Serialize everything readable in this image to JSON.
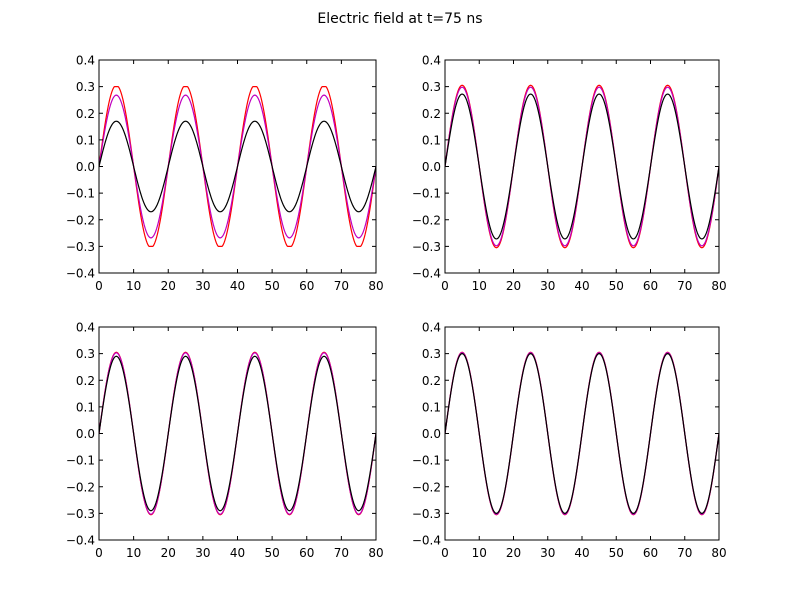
{
  "figure": {
    "title": "Electric field at t=75 ns"
  },
  "chart_data": [
    {
      "type": "line",
      "xlim": [
        0,
        80
      ],
      "ylim": [
        -0.4,
        0.4
      ],
      "xticks": [
        0,
        10,
        20,
        30,
        40,
        50,
        60,
        70,
        80
      ],
      "xtick_labels": [
        "0",
        "10",
        "20",
        "30",
        "40",
        "50",
        "60",
        "70",
        "80"
      ],
      "yticks": [
        -0.4,
        -0.3,
        -0.2,
        -0.1,
        0.0,
        0.1,
        0.2,
        0.3,
        0.4
      ],
      "ytick_labels": [
        "−0.4",
        "−0.3",
        "−0.2",
        "−0.1",
        "0.0",
        "0.1",
        "0.2",
        "0.3",
        "0.4"
      ],
      "grid": false,
      "series": [
        {
          "color": "#ff0000",
          "amplitude": 0.305,
          "period": 20,
          "x_start": 0,
          "x_end": 80,
          "shape": "clipped-sine",
          "flat_top": 0.3
        },
        {
          "color": "#bf00bf",
          "amplitude": 0.268,
          "period": 20,
          "x_start": 0,
          "x_end": 80,
          "shape": "sine"
        },
        {
          "color": "#000000",
          "amplitude": 0.17,
          "period": 20,
          "x_start": 0,
          "x_end": 80,
          "shape": "sine"
        }
      ]
    },
    {
      "type": "line",
      "xlim": [
        0,
        80
      ],
      "ylim": [
        -0.4,
        0.4
      ],
      "xticks": [
        0,
        10,
        20,
        30,
        40,
        50,
        60,
        70,
        80
      ],
      "xtick_labels": [
        "0",
        "10",
        "20",
        "30",
        "40",
        "50",
        "60",
        "70",
        "80"
      ],
      "yticks": [
        -0.4,
        -0.3,
        -0.2,
        -0.1,
        0.0,
        0.1,
        0.2,
        0.3,
        0.4
      ],
      "ytick_labels": [
        "−0.4",
        "−0.3",
        "−0.2",
        "−0.1",
        "0.0",
        "0.1",
        "0.2",
        "0.3",
        "0.4"
      ],
      "grid": false,
      "series": [
        {
          "color": "#ff0000",
          "amplitude": 0.305,
          "period": 20,
          "x_start": 0,
          "x_end": 80,
          "shape": "sine"
        },
        {
          "color": "#bf00bf",
          "amplitude": 0.298,
          "period": 20,
          "x_start": 0,
          "x_end": 80,
          "shape": "sine"
        },
        {
          "color": "#000000",
          "amplitude": 0.272,
          "period": 20,
          "x_start": 0,
          "x_end": 80,
          "shape": "sine"
        }
      ]
    },
    {
      "type": "line",
      "xlim": [
        0,
        80
      ],
      "ylim": [
        -0.4,
        0.4
      ],
      "xticks": [
        0,
        10,
        20,
        30,
        40,
        50,
        60,
        70,
        80
      ],
      "xtick_labels": [
        "0",
        "10",
        "20",
        "30",
        "40",
        "50",
        "60",
        "70",
        "80"
      ],
      "yticks": [
        -0.4,
        -0.3,
        -0.2,
        -0.1,
        0.0,
        0.1,
        0.2,
        0.3,
        0.4
      ],
      "ytick_labels": [
        "−0.4",
        "−0.3",
        "−0.2",
        "−0.1",
        "0.0",
        "0.1",
        "0.2",
        "0.3",
        "0.4"
      ],
      "grid": false,
      "series": [
        {
          "color": "#ff0000",
          "amplitude": 0.305,
          "period": 20,
          "x_start": 0,
          "x_end": 80,
          "shape": "sine"
        },
        {
          "color": "#bf00bf",
          "amplitude": 0.303,
          "period": 20,
          "x_start": 0,
          "x_end": 80,
          "shape": "sine"
        },
        {
          "color": "#000000",
          "amplitude": 0.29,
          "period": 20,
          "x_start": 0,
          "x_end": 80,
          "shape": "sine"
        }
      ]
    },
    {
      "type": "line",
      "xlim": [
        0,
        80
      ],
      "ylim": [
        -0.4,
        0.4
      ],
      "xticks": [
        0,
        10,
        20,
        30,
        40,
        50,
        60,
        70,
        80
      ],
      "xtick_labels": [
        "0",
        "10",
        "20",
        "30",
        "40",
        "50",
        "60",
        "70",
        "80"
      ],
      "yticks": [
        -0.4,
        -0.3,
        -0.2,
        -0.1,
        0.0,
        0.1,
        0.2,
        0.3,
        0.4
      ],
      "ytick_labels": [
        "−0.4",
        "−0.3",
        "−0.2",
        "−0.1",
        "0.0",
        "0.1",
        "0.2",
        "0.3",
        "0.4"
      ],
      "grid": false,
      "series": [
        {
          "color": "#ff0000",
          "amplitude": 0.305,
          "period": 20,
          "x_start": 0,
          "x_end": 80,
          "shape": "sine"
        },
        {
          "color": "#bf00bf",
          "amplitude": 0.304,
          "period": 20,
          "x_start": 0,
          "x_end": 80,
          "shape": "sine"
        },
        {
          "color": "#000000",
          "amplitude": 0.3,
          "period": 20,
          "x_start": 0,
          "x_end": 80,
          "shape": "sine"
        }
      ]
    }
  ]
}
